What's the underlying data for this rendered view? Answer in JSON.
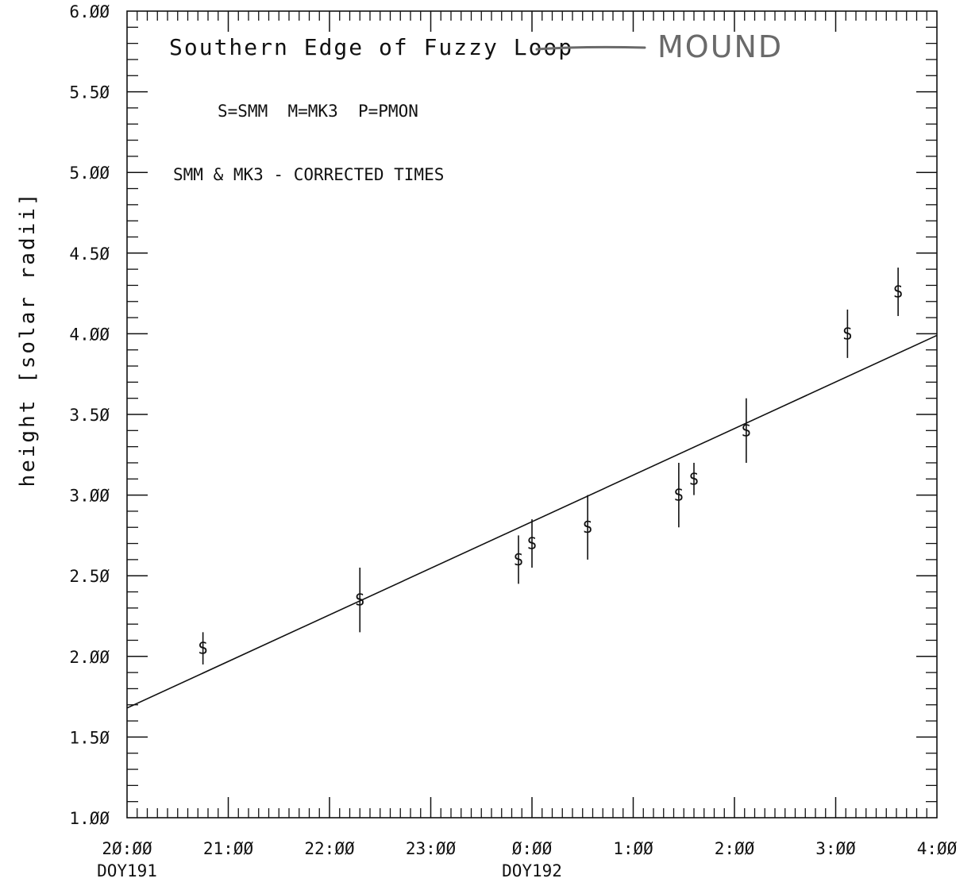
{
  "chart_data": {
    "type": "scatter",
    "title": "Southern Edge of Fuzzy Loop",
    "handwritten_correction": "MOUND",
    "annotations": [
      "S=SMM  M=MK3  P=PMON",
      "SMM & MK3 - CORRECTED TIMES"
    ],
    "ylabel": "height [solar radii]",
    "xlabel": "",
    "x_tick_labels": [
      "20:00",
      "21:00",
      "22:00",
      "23:00",
      "0:00",
      "1:00",
      "2:00",
      "3:00",
      "4:00"
    ],
    "x_day_labels": [
      {
        "at": "20:00",
        "text": "DOY191"
      },
      {
        "at": "0:00",
        "text": "DOY192"
      }
    ],
    "y_tick_labels": [
      "1.00",
      "1.50",
      "2.00",
      "2.50",
      "3.00",
      "3.50",
      "4.00",
      "4.50",
      "5.00",
      "5.50",
      "6.00"
    ],
    "xlim": [
      "DOY191 20:00",
      "DOY192 04:00"
    ],
    "ylim": [
      1.0,
      6.0
    ],
    "grid": false,
    "series": [
      {
        "marker": "S",
        "points": [
          {
            "x": "DOY191 20:45",
            "y": 2.05,
            "err": 0.1
          },
          {
            "x": "DOY191 22:18",
            "y": 2.35,
            "err": 0.2
          },
          {
            "x": "DOY191 23:52",
            "y": 2.6,
            "err": 0.15
          },
          {
            "x": "DOY192 00:00",
            "y": 2.7,
            "err": 0.15
          },
          {
            "x": "DOY192 00:33",
            "y": 2.8,
            "err": 0.2
          },
          {
            "x": "DOY192 01:27",
            "y": 3.0,
            "err": 0.2
          },
          {
            "x": "DOY192 01:36",
            "y": 3.1,
            "err": 0.1
          },
          {
            "x": "DOY192 02:07",
            "y": 3.4,
            "err": 0.2
          },
          {
            "x": "DOY192 03:07",
            "y": 4.0,
            "err": 0.15
          },
          {
            "x": "DOY192 03:37",
            "y": 4.26,
            "err": 0.15
          }
        ]
      }
    ],
    "fit_line": {
      "start": {
        "x": "DOY191 20:00",
        "y": 1.68
      },
      "end": {
        "x": "DOY192 04:00",
        "y": 3.99
      }
    }
  }
}
